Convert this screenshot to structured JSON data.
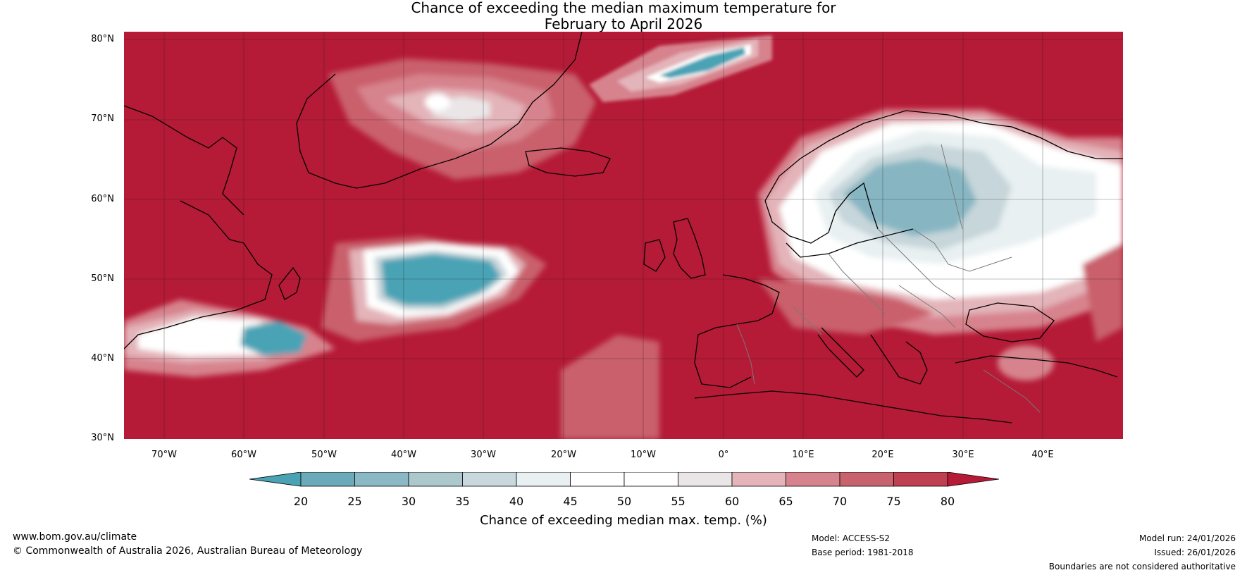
{
  "title": {
    "line1": "Chance of exceeding the median maximum temperature for",
    "line2": "February to April 2026"
  },
  "map": {
    "lat_ticks": [
      "80°N",
      "70°N",
      "60°N",
      "50°N",
      "40°N",
      "30°N"
    ],
    "lon_ticks": [
      "70°W",
      "60°W",
      "50°W",
      "40°W",
      "30°W",
      "20°W",
      "10°W",
      "0°",
      "10°E",
      "20°E",
      "30°E",
      "40°E"
    ],
    "lon_range": [
      -75,
      50
    ],
    "lat_range": [
      30,
      81
    ],
    "colors": {
      "high": "#b51a36",
      "mid_high": "#c9606c",
      "light_pink": "#e3b4b9",
      "neutral": "#ffffff",
      "light_blue": "#c6d6da",
      "mid_blue": "#87b6c2",
      "low": "#4aa3b5",
      "coast": "#000000",
      "borders": "#7a7a7a"
    }
  },
  "colorbar": {
    "ticks": [
      "20",
      "25",
      "30",
      "35",
      "40",
      "45",
      "50",
      "55",
      "60",
      "65",
      "70",
      "75",
      "80"
    ],
    "colors": [
      "#4aa3b5",
      "#6aaab9",
      "#8bb8c5",
      "#abc8cd",
      "#c9d8dc",
      "#e8f0f1",
      "#ffffff",
      "#ffffff",
      "#eae6e7",
      "#e3b4b9",
      "#d7838d",
      "#c8636e",
      "#bf4050",
      "#b51a36"
    ],
    "label": "Chance of exceeding median max. temp. (%)"
  },
  "footer": {
    "website": "www.bom.gov.au/climate",
    "copyright": "© Commonwealth of Australia 2026, Australian Bureau of Meteorology",
    "model": "Model: ACCESS-S2",
    "base_period": "Base period: 1981-2018",
    "model_run": "Model run: 24/01/2026",
    "issued": "Issued: 26/01/2026",
    "boundaries": "Boundaries are not considered authoritative"
  }
}
